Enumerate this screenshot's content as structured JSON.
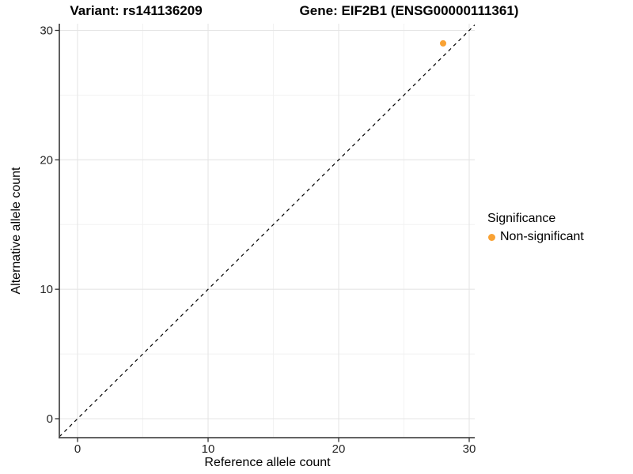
{
  "titles": {
    "variant": "Variant: rs141136209",
    "gene": "Gene: EIF2B1 (ENSG00000111361)"
  },
  "chart_data": {
    "type": "scatter",
    "title_left": "Variant: rs141136209",
    "title_right": "Gene: EIF2B1 (ENSG00000111361)",
    "xlabel": "Reference allele count",
    "ylabel": "Alternative allele count",
    "xlim": [
      -1.4,
      30.4
    ],
    "ylim": [
      -1.5,
      30.5
    ],
    "x_ticks": [
      0,
      10,
      20,
      30
    ],
    "y_ticks": [
      0,
      10,
      20,
      30
    ],
    "x_minor_ticks": [
      5,
      15,
      25
    ],
    "y_minor_ticks": [
      5,
      15,
      25
    ],
    "grid": true,
    "identity_line": {
      "type": "dashed",
      "equation": "y = x",
      "color": "#000000"
    },
    "series": [
      {
        "name": "Non-significant",
        "color": "#F9A234",
        "points": [
          {
            "x": 28,
            "y": 29
          }
        ]
      }
    ],
    "legend": {
      "title": "Significance",
      "position": "right",
      "items": [
        {
          "label": "Non-significant",
          "color": "#F9A234"
        }
      ]
    },
    "colors": {
      "background": "#FFFFFF",
      "major_grid": "#E5E5E5",
      "minor_grid": "#F2F2F2",
      "axis_line": "#4D4D4D",
      "tick_mark": "#333333",
      "tick_label": "#262626"
    }
  }
}
